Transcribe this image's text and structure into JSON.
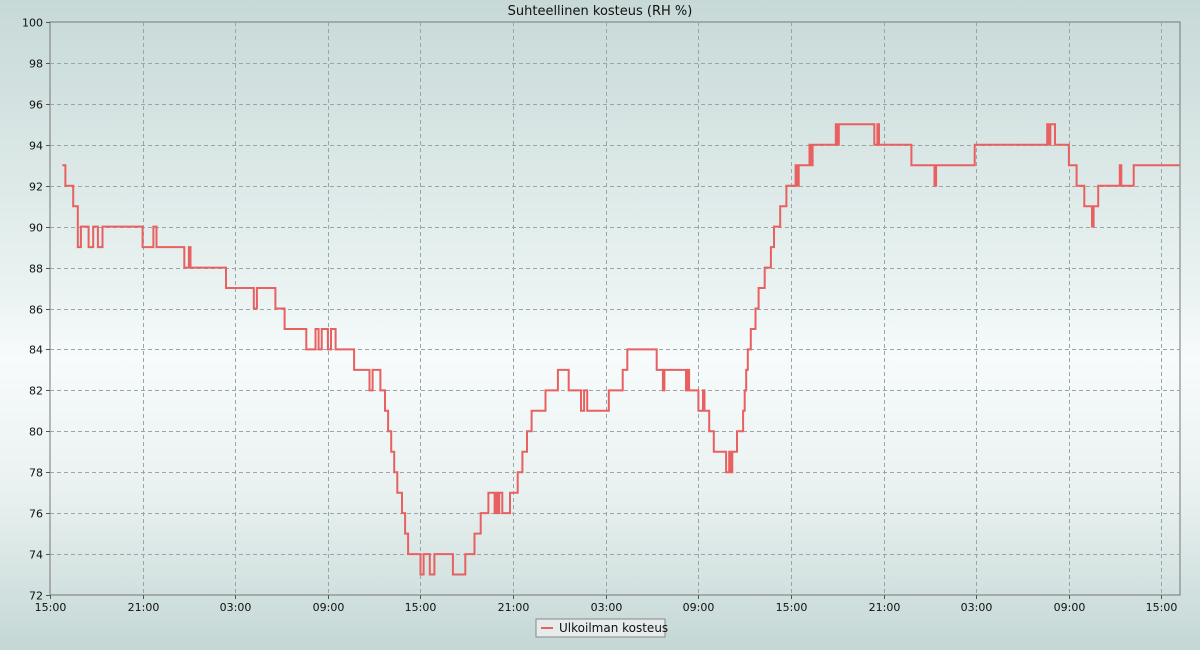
{
  "chart_data": {
    "type": "line",
    "title": "Suhteellinen kosteus (RH %)",
    "xlabel": "",
    "ylabel": "",
    "ylim": [
      72,
      100
    ],
    "y_ticks": [
      72,
      74,
      76,
      78,
      80,
      82,
      84,
      86,
      88,
      90,
      92,
      94,
      96,
      98,
      100
    ],
    "x_unit": "hours from 15:00 (first tick)",
    "xlim": [
      0,
      73.2
    ],
    "x_ticks": [
      {
        "x": 0,
        "label": "15:00"
      },
      {
        "x": 6,
        "label": "21:00"
      },
      {
        "x": 12,
        "label": "03:00"
      },
      {
        "x": 18,
        "label": "09:00"
      },
      {
        "x": 24,
        "label": "15:00"
      },
      {
        "x": 30,
        "label": "21:00"
      },
      {
        "x": 36,
        "label": "03:00"
      },
      {
        "x": 42,
        "label": "09:00"
      },
      {
        "x": 48,
        "label": "15:00"
      },
      {
        "x": 54,
        "label": "21:00"
      },
      {
        "x": 60,
        "label": "03:00"
      },
      {
        "x": 66,
        "label": "09:00"
      },
      {
        "x": 72,
        "label": "15:00"
      }
    ],
    "grid": true,
    "legend_position": "bottom-center",
    "series": [
      {
        "name": "Ulkoilman kosteus",
        "color": "#e86060",
        "step": true,
        "points": [
          [
            0.8,
            93
          ],
          [
            1.0,
            92
          ],
          [
            1.5,
            91
          ],
          [
            1.8,
            89
          ],
          [
            2.0,
            90
          ],
          [
            2.5,
            89
          ],
          [
            2.8,
            90
          ],
          [
            3.1,
            89
          ],
          [
            3.4,
            90
          ],
          [
            6.0,
            89
          ],
          [
            6.7,
            90
          ],
          [
            6.9,
            89
          ],
          [
            8.7,
            88
          ],
          [
            9.0,
            89
          ],
          [
            9.1,
            88
          ],
          [
            11.4,
            87
          ],
          [
            13.2,
            86
          ],
          [
            13.4,
            87
          ],
          [
            14.6,
            86
          ],
          [
            15.2,
            85
          ],
          [
            16.6,
            84
          ],
          [
            17.2,
            85
          ],
          [
            17.4,
            84
          ],
          [
            17.6,
            85
          ],
          [
            18.0,
            84
          ],
          [
            18.2,
            85
          ],
          [
            18.5,
            84
          ],
          [
            19.7,
            83
          ],
          [
            20.7,
            82
          ],
          [
            20.9,
            83
          ],
          [
            21.4,
            82
          ],
          [
            21.7,
            81
          ],
          [
            21.9,
            80
          ],
          [
            22.1,
            79
          ],
          [
            22.3,
            78
          ],
          [
            22.5,
            77
          ],
          [
            22.8,
            76
          ],
          [
            23.0,
            75
          ],
          [
            23.2,
            74
          ],
          [
            24.0,
            73
          ],
          [
            24.2,
            74
          ],
          [
            24.6,
            73
          ],
          [
            24.9,
            74
          ],
          [
            26.1,
            73
          ],
          [
            26.9,
            74
          ],
          [
            27.5,
            75
          ],
          [
            27.9,
            76
          ],
          [
            28.4,
            77
          ],
          [
            28.8,
            76
          ],
          [
            28.9,
            77
          ],
          [
            29.0,
            76
          ],
          [
            29.1,
            77
          ],
          [
            29.3,
            76
          ],
          [
            29.8,
            77
          ],
          [
            30.3,
            78
          ],
          [
            30.6,
            79
          ],
          [
            30.9,
            80
          ],
          [
            31.2,
            81
          ],
          [
            32.1,
            82
          ],
          [
            32.9,
            83
          ],
          [
            33.6,
            82
          ],
          [
            34.4,
            81
          ],
          [
            34.6,
            82
          ],
          [
            34.8,
            81
          ],
          [
            36.2,
            82
          ],
          [
            37.1,
            83
          ],
          [
            37.4,
            84
          ],
          [
            39.3,
            83
          ],
          [
            39.7,
            82
          ],
          [
            39.8,
            83
          ],
          [
            41.2,
            82
          ],
          [
            41.3,
            83
          ],
          [
            41.4,
            82
          ],
          [
            42.0,
            81
          ],
          [
            42.3,
            82
          ],
          [
            42.4,
            81
          ],
          [
            42.7,
            80
          ],
          [
            43.0,
            79
          ],
          [
            43.8,
            78
          ],
          [
            44.0,
            79
          ],
          [
            44.1,
            78
          ],
          [
            44.2,
            79
          ],
          [
            44.5,
            80
          ],
          [
            44.9,
            81
          ],
          [
            45.0,
            82
          ],
          [
            45.1,
            83
          ],
          [
            45.2,
            84
          ],
          [
            45.4,
            85
          ],
          [
            45.7,
            86
          ],
          [
            45.9,
            87
          ],
          [
            46.3,
            88
          ],
          [
            46.7,
            89
          ],
          [
            46.9,
            90
          ],
          [
            47.3,
            91
          ],
          [
            47.7,
            92
          ],
          [
            48.3,
            93
          ],
          [
            48.4,
            92
          ],
          [
            48.5,
            93
          ],
          [
            49.2,
            94
          ],
          [
            49.3,
            93
          ],
          [
            49.4,
            94
          ],
          [
            50.9,
            95
          ],
          [
            51.0,
            94
          ],
          [
            51.1,
            95
          ],
          [
            53.4,
            94
          ],
          [
            53.6,
            95
          ],
          [
            53.7,
            94
          ],
          [
            55.8,
            93
          ],
          [
            57.3,
            92
          ],
          [
            57.4,
            93
          ],
          [
            59.9,
            94
          ],
          [
            64.6,
            95
          ],
          [
            64.7,
            94
          ],
          [
            64.8,
            95
          ],
          [
            65.1,
            94
          ],
          [
            66.0,
            93
          ],
          [
            66.5,
            92
          ],
          [
            67.0,
            91
          ],
          [
            67.5,
            90
          ],
          [
            67.6,
            91
          ],
          [
            67.9,
            92
          ],
          [
            69.3,
            93
          ],
          [
            69.4,
            92
          ],
          [
            70.2,
            93
          ],
          [
            73.2,
            93
          ]
        ]
      }
    ]
  }
}
